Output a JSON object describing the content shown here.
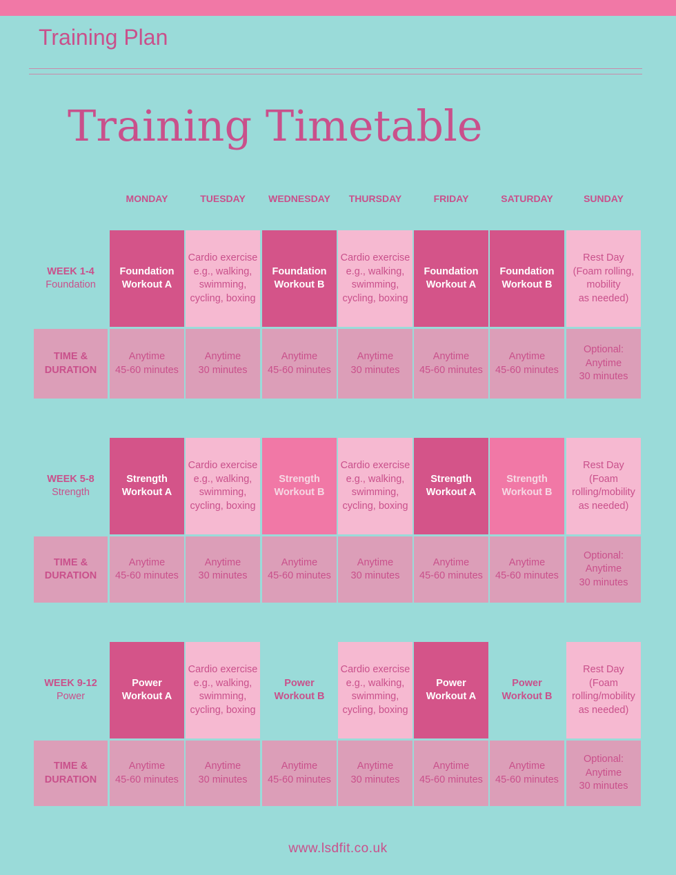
{
  "header": {
    "title": "Training Plan"
  },
  "main_title": "Training Timetable",
  "days": [
    "MONDAY",
    "TUESDAY",
    "WEDNESDAY",
    "THURSDAY",
    "FRIDAY",
    "SATURDAY",
    "SUNDAY"
  ],
  "colors": {
    "background": "#9adbd9",
    "top_bar": "#f178a6",
    "accent_text": "#c9508b",
    "dark_pink": "#d45489",
    "hot_pink": "#f178a6",
    "light_pink": "#f6b9d1",
    "mauve": "#dc9eb8"
  },
  "blocks": [
    {
      "week_label": "WEEK 1-4",
      "week_sub": "Foundation",
      "duration_label": [
        "TIME &",
        "DURATION"
      ],
      "workouts": [
        {
          "style": "dark",
          "lines": [
            "Foundation",
            "Workout A"
          ]
        },
        {
          "style": "light",
          "lines": [
            "Cardio exercise",
            "e.g., walking,",
            "swimming,",
            "cycling, boxing"
          ]
        },
        {
          "style": "dark",
          "lines": [
            "Foundation",
            "Workout B"
          ]
        },
        {
          "style": "light",
          "lines": [
            "Cardio exercise",
            "e.g., walking,",
            "swimming,",
            "cycling, boxing"
          ]
        },
        {
          "style": "dark",
          "lines": [
            "Foundation",
            "Workout A"
          ]
        },
        {
          "style": "dark",
          "lines": [
            "Foundation",
            "Workout B"
          ]
        },
        {
          "style": "light",
          "lines": [
            "Rest Day",
            "(Foam rolling,",
            "mobility",
            "as needed)"
          ]
        }
      ],
      "durations": [
        [
          "Anytime",
          "45-60 minutes"
        ],
        [
          "Anytime",
          "30 minutes"
        ],
        [
          "Anytime",
          "45-60 minutes"
        ],
        [
          "Anytime",
          "30 minutes"
        ],
        [
          "Anytime",
          "45-60 minutes"
        ],
        [
          "Anytime",
          "45-60 minutes"
        ],
        [
          "Optional:",
          "Anytime",
          "30 minutes"
        ]
      ]
    },
    {
      "week_label": "WEEK 5-8",
      "week_sub": "Strength",
      "duration_label": [
        "TIME &",
        "DURATION"
      ],
      "workouts": [
        {
          "style": "dark",
          "lines": [
            "Strength",
            "Workout A"
          ]
        },
        {
          "style": "light",
          "lines": [
            "Cardio exercise",
            "e.g., walking,",
            "swimming,",
            "cycling, boxing"
          ]
        },
        {
          "style": "hot",
          "lines": [
            "Strength",
            "Workout B"
          ]
        },
        {
          "style": "light",
          "lines": [
            "Cardio exercise",
            "e.g., walking,",
            "swimming,",
            "cycling, boxing"
          ]
        },
        {
          "style": "dark",
          "lines": [
            "Strength",
            "Workout A"
          ]
        },
        {
          "style": "hot",
          "lines": [
            "Strength",
            "Workout B"
          ]
        },
        {
          "style": "light",
          "lines": [
            "Rest Day",
            "(Foam",
            "rolling/mobility",
            "as needed)"
          ]
        }
      ],
      "durations": [
        [
          "Anytime",
          "45-60 minutes"
        ],
        [
          "Anytime",
          "30 minutes"
        ],
        [
          "Anytime",
          "45-60 minutes"
        ],
        [
          "Anytime",
          "30 minutes"
        ],
        [
          "Anytime",
          "45-60 minutes"
        ],
        [
          "Anytime",
          "45-60 minutes"
        ],
        [
          "Optional:",
          "Anytime",
          "30 minutes"
        ]
      ]
    },
    {
      "week_label": "WEEK 9-12",
      "week_sub": "Power",
      "duration_label": [
        "TIME &",
        "DURATION"
      ],
      "workouts": [
        {
          "style": "dark",
          "lines": [
            "Power",
            "Workout A"
          ]
        },
        {
          "style": "light",
          "lines": [
            "Cardio exercise",
            "e.g., walking,",
            "swimming,",
            "cycling, boxing"
          ]
        },
        {
          "style": "teal-bold",
          "lines": [
            "Power",
            "Workout B"
          ]
        },
        {
          "style": "light",
          "lines": [
            "Cardio exercise",
            "e.g., walking,",
            "swimming,",
            "cycling, boxing"
          ]
        },
        {
          "style": "dark",
          "lines": [
            "Power",
            "Workout A"
          ]
        },
        {
          "style": "teal-bold",
          "lines": [
            "Power",
            "Workout B"
          ]
        },
        {
          "style": "light",
          "lines": [
            "Rest Day",
            "(Foam",
            "rolling/mobility",
            "as needed)"
          ]
        }
      ],
      "durations": [
        [
          "Anytime",
          "45-60 minutes"
        ],
        [
          "Anytime",
          "30 minutes"
        ],
        [
          "Anytime",
          "45-60 minutes"
        ],
        [
          "Anytime",
          "30 minutes"
        ],
        [
          "Anytime",
          "45-60 minutes"
        ],
        [
          "Anytime",
          "45-60 minutes"
        ],
        [
          "Optional:",
          "Anytime",
          "30 minutes"
        ]
      ]
    }
  ],
  "footer": {
    "url": "www.lsdfit.co.uk"
  }
}
